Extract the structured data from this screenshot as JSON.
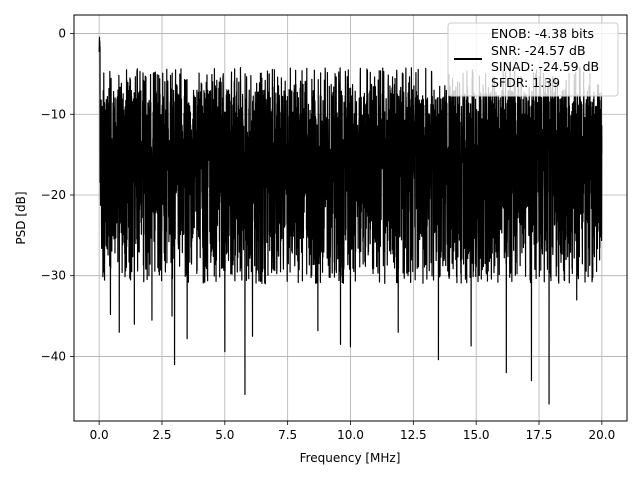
{
  "chart_data": {
    "type": "line",
    "title": "",
    "xlabel": "Frequency [MHz]",
    "ylabel": "PSD [dB]",
    "xlim": [
      -1.0,
      21.0
    ],
    "ylim": [
      -48.0,
      2.3
    ],
    "xticks": [
      0.0,
      2.5,
      5.0,
      7.5,
      10.0,
      12.5,
      15.0,
      17.5,
      20.0
    ],
    "xtick_labels": [
      "0.0",
      "2.5",
      "5.0",
      "7.5",
      "10.0",
      "12.5",
      "15.0",
      "17.5",
      "20.0"
    ],
    "yticks": [
      0,
      -10,
      -20,
      -30,
      -40
    ],
    "ytick_labels": [
      "0",
      "−10",
      "−20",
      "−30",
      "−40"
    ],
    "grid": true,
    "legend_position": "upper right",
    "legend_entries": [
      "ENOB: -4.38 bits",
      "SNR: -24.57 dB",
      "SINAD: -24.59 dB",
      "SFDR: 1.39"
    ],
    "series": [
      {
        "color": "#000000",
        "description": "dense noise-like power spectral density, approx. 4000 points between 0 and 20 MHz",
        "x_range": [
          0.0,
          20.0
        ],
        "upper_envelope_dB": -5,
        "lower_envelope_dB": -27,
        "initial_peak_dB": 0,
        "notable_minima": [
          {
            "x": 0.45,
            "y": -34.8
          },
          {
            "x": 0.8,
            "y": -37.0
          },
          {
            "x": 1.4,
            "y": -36.0
          },
          {
            "x": 2.1,
            "y": -35.5
          },
          {
            "x": 2.9,
            "y": -35.0
          },
          {
            "x": 3.0,
            "y": -41.0
          },
          {
            "x": 3.5,
            "y": -37.8
          },
          {
            "x": 5.0,
            "y": -39.4
          },
          {
            "x": 5.8,
            "y": -44.7
          },
          {
            "x": 6.1,
            "y": -37.5
          },
          {
            "x": 8.7,
            "y": -36.8
          },
          {
            "x": 9.6,
            "y": -38.5
          },
          {
            "x": 10.0,
            "y": -38.8
          },
          {
            "x": 11.9,
            "y": -37.0
          },
          {
            "x": 13.5,
            "y": -40.4
          },
          {
            "x": 14.8,
            "y": -38.7
          },
          {
            "x": 16.2,
            "y": -42.0
          },
          {
            "x": 17.2,
            "y": -43.0
          },
          {
            "x": 17.9,
            "y": -45.9
          },
          {
            "x": 19.0,
            "y": -33.0
          }
        ]
      }
    ]
  },
  "colors": {
    "line": "#000000",
    "grid": "#b0b0b0",
    "axes": "#000000",
    "legend_border": "#cccccc"
  }
}
